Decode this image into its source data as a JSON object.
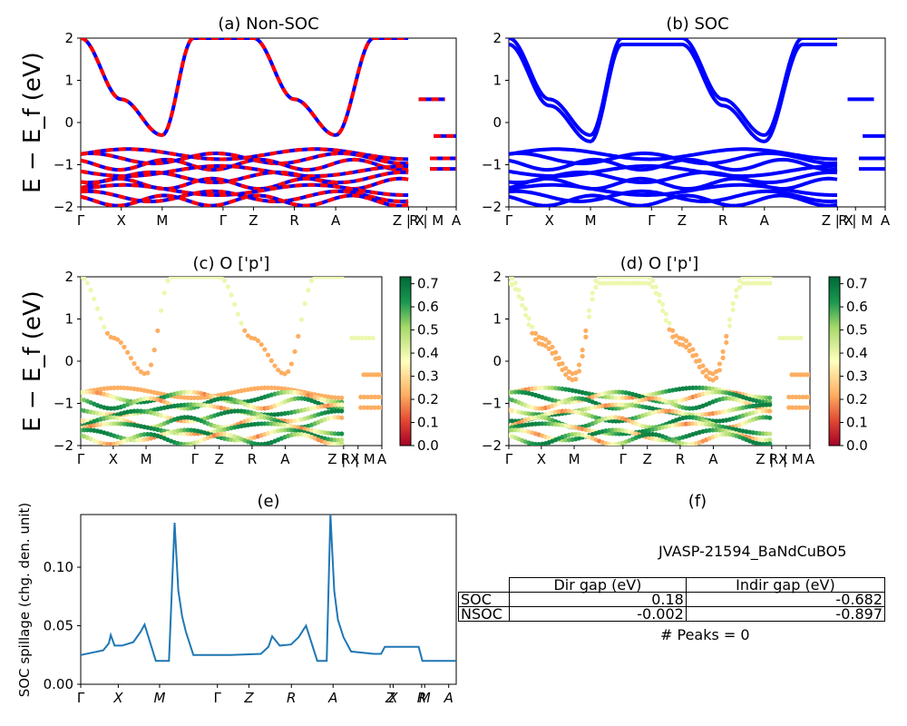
{
  "chart_data": [
    {
      "id": "a",
      "type": "line",
      "title": "(a) Non-SOC",
      "ylabel": "E − E_f (eV)",
      "ylim": [
        -2,
        2
      ],
      "yticks": [
        "2",
        "1",
        "0",
        "−1",
        "−2"
      ],
      "xticks": [
        "Γ",
        "X",
        "M",
        "Γ",
        "Z",
        "R",
        "A",
        "Z | X",
        "R | M",
        "A"
      ],
      "series_colors": [
        "#0000ff",
        "#ff0000"
      ]
    },
    {
      "id": "b",
      "type": "line",
      "title": "(b) SOC",
      "ylim": [
        -2,
        2
      ],
      "yticks": [
        "2",
        "1",
        "0",
        "−1",
        "−2"
      ],
      "xticks": [
        "Γ",
        "X",
        "M",
        "Γ",
        "Z",
        "R",
        "A",
        "Z | X",
        "R | M",
        "A"
      ],
      "series_colors": [
        "#0000ff"
      ]
    },
    {
      "id": "c",
      "type": "scatter",
      "title": "(c)  O ['p']",
      "ylabel": "E − E_f (eV)",
      "ylim": [
        -2,
        2
      ],
      "yticks": [
        "2",
        "1",
        "0",
        "−1",
        "−2"
      ],
      "xticks": [
        "Γ",
        "X",
        "M",
        "Γ",
        "Z",
        "R",
        "A",
        "Z | X",
        "R | M",
        "A"
      ],
      "colorbar": {
        "min": 0.0,
        "max": 0.7,
        "ticks": [
          "0.7",
          "0.6",
          "0.5",
          "0.4",
          "0.3",
          "0.2",
          "0.1",
          "0.0"
        ]
      }
    },
    {
      "id": "d",
      "type": "scatter",
      "title": "(d) O ['p']",
      "ylim": [
        -2,
        2
      ],
      "yticks": [
        "2",
        "1",
        "0",
        "−1",
        "−2"
      ],
      "xticks": [
        "Γ",
        "X",
        "M",
        "Γ",
        "Z",
        "R",
        "A",
        "Z | X",
        "R | M",
        "A"
      ],
      "colorbar": {
        "min": 0.0,
        "max": 0.7,
        "ticks": [
          "0.7",
          "0.6",
          "0.5",
          "0.4",
          "0.3",
          "0.2",
          "0.1",
          "0.0"
        ]
      }
    },
    {
      "id": "e",
      "type": "line",
      "title": "(e)",
      "ylabel": "SOC spillage (chg. den. unit)",
      "ylim": [
        0,
        0.145
      ],
      "yticks": [
        "0.10",
        "0.05",
        "0.00"
      ],
      "xticks": [
        "Γ",
        "X",
        "M",
        "Γ",
        "Z",
        "R",
        "A",
        "Z",
        "X",
        "R",
        "M",
        "A"
      ],
      "line_color": "#1f77b4",
      "series": [
        {
          "x": [
            0,
            0.06,
            0.075,
            0.08,
            0.09,
            0.11,
            0.14,
            0.16,
            0.17,
            0.2,
            0.235,
            0.25,
            0.26,
            0.27,
            0.28,
            0.3,
            0.4,
            0.48,
            0.5,
            0.51,
            0.53,
            0.56,
            0.58,
            0.6,
            0.63,
            0.655,
            0.665,
            0.675,
            0.685,
            0.7,
            0.72,
            0.78,
            0.8,
            0.81,
            0.84,
            0.9,
            0.91,
            0.98,
            1.0
          ],
          "y": [
            0.025,
            0.029,
            0.035,
            0.042,
            0.033,
            0.033,
            0.036,
            0.045,
            0.051,
            0.02,
            0.02,
            0.138,
            0.08,
            0.058,
            0.045,
            0.025,
            0.025,
            0.026,
            0.032,
            0.041,
            0.033,
            0.034,
            0.04,
            0.05,
            0.02,
            0.02,
            0.145,
            0.08,
            0.055,
            0.04,
            0.028,
            0.026,
            0.026,
            0.032,
            0.032,
            0.032,
            0.02,
            0.02,
            0.02
          ]
        }
      ]
    }
  ],
  "panel_f": {
    "title": "(f)",
    "jid": "JVASP-21594_BaNdCuBO5",
    "table": {
      "headers": [
        "Dir gap (eV)",
        "Indir gap (eV)"
      ],
      "rows": [
        {
          "label": "SOC",
          "dir": "0.18",
          "indir": "-0.682"
        },
        {
          "label": "NSOC",
          "dir": "-0.002",
          "indir": "-0.897"
        }
      ]
    },
    "peaks": "# Peaks = 0"
  }
}
